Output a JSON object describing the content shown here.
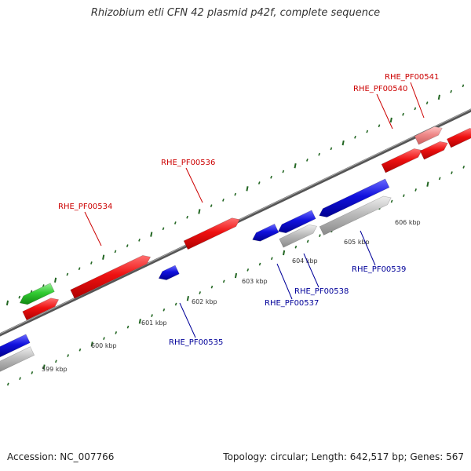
{
  "title": "Rhizobium etli CFN 42 plasmid p42f, complete sequence",
  "footer": {
    "accession": "Accession: NC_007766",
    "summary": "Topology: circular; Length: 642,517 bp; Genes: 567"
  },
  "colors": {
    "forward_gene": "#ee1111",
    "reverse_gene": "#1111dd",
    "rna_gene": "#33cc33",
    "pseudo_forward": "#ee8888",
    "pseudo_reverse": "#bbbbbb",
    "backbone": "#777777",
    "tick": "#226622",
    "forward_label": "#cc0000",
    "reverse_label": "#000099"
  },
  "kbp_ticks": [
    {
      "kbp": 599,
      "label": "599 kbp"
    },
    {
      "kbp": 600,
      "label": "600 kbp"
    },
    {
      "kbp": 601,
      "label": "601 kbp"
    },
    {
      "kbp": 602,
      "label": "602 kbp"
    },
    {
      "kbp": 603,
      "label": "603 kbp"
    },
    {
      "kbp": 604,
      "label": "604 kbp"
    },
    {
      "kbp": 605,
      "label": "605 kbp"
    },
    {
      "kbp": 606,
      "label": "606 kbp"
    }
  ],
  "gene_labels": [
    {
      "name": "RHE_PF00534",
      "strand": "forward"
    },
    {
      "name": "RHE_PF00536",
      "strand": "forward"
    },
    {
      "name": "RHE_PF00540",
      "strand": "forward"
    },
    {
      "name": "RHE_PF00541",
      "strand": "forward"
    },
    {
      "name": "RHE_PF00535",
      "strand": "reverse"
    },
    {
      "name": "RHE_PF00537",
      "strand": "reverse"
    },
    {
      "name": "RHE_PF00538",
      "strand": "reverse"
    },
    {
      "name": "RHE_PF00539",
      "strand": "reverse"
    }
  ]
}
